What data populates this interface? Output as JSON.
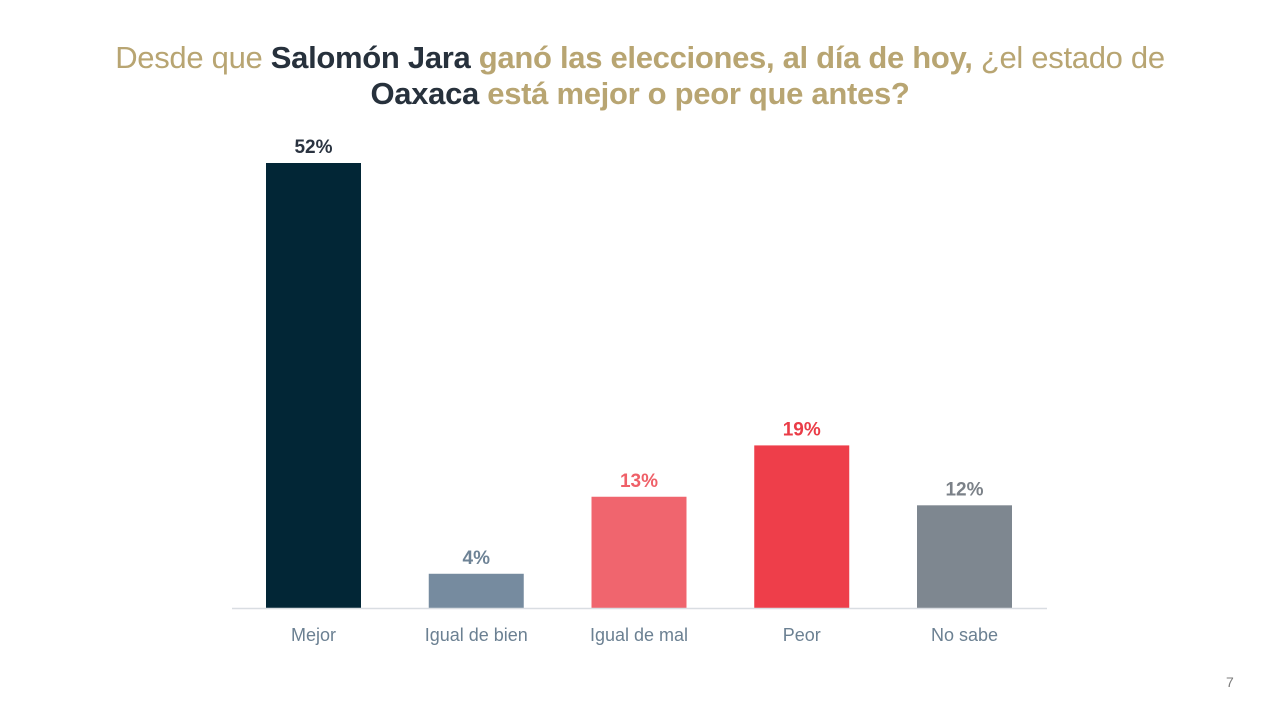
{
  "title": {
    "l1a": "Desde que ",
    "l1b": "Salomón Jara",
    "l1c": " ganó las elecciones, al día de hoy,",
    "l1d": " ¿el estado de",
    "l2a": "Oaxaca",
    "l2b": " está mejor o peor que antes?"
  },
  "colors": {
    "title_gold": "#b8a572",
    "title_dark": "#27313c",
    "axis_label": "#6b8092",
    "baseline": "#d9dde2"
  },
  "chart_data": {
    "type": "bar",
    "categories": [
      "Mejor",
      "Igual de bien",
      "Igual de mal",
      "Peor",
      "No sabe"
    ],
    "values": [
      52,
      4,
      13,
      19,
      12
    ],
    "value_labels": [
      "52%",
      "4%",
      "13%",
      "19%",
      "12%"
    ],
    "bar_colors": [
      "#022636",
      "#768b9f",
      "#f0656e",
      "#ee3e4a",
      "#7e8790"
    ],
    "label_colors": [
      "#2a3340",
      "#6e8396",
      "#ef6068",
      "#ea3c47",
      "#7b8188"
    ],
    "ylim": [
      0,
      52
    ],
    "grid": false,
    "legend": "none"
  },
  "page_number": "7"
}
